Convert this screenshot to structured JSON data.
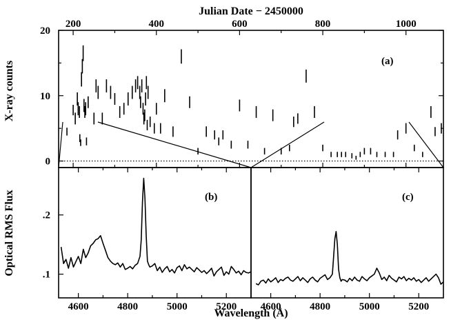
{
  "chart_data": [
    {
      "panel_label": "(a)",
      "type": "error-bar",
      "top_axis_label": "Julian Date − 2450000",
      "ylabel": "X-ray counts",
      "xlim": [
        165,
        1090
      ],
      "ylim": [
        -1,
        20
      ],
      "x_ticks": [
        200,
        400,
        600,
        800,
        1000
      ],
      "y_ticks": [
        0,
        10,
        20
      ],
      "zero_line": 0,
      "x": [
        185,
        200,
        205,
        210,
        212,
        215,
        216,
        218,
        220,
        222,
        224,
        226,
        228,
        230,
        232,
        236,
        250,
        255,
        260,
        270,
        280,
        290,
        300,
        312,
        322,
        332,
        342,
        350,
        355,
        360,
        362,
        365,
        368,
        370,
        372,
        374,
        376,
        378,
        380,
        385,
        395,
        400,
        410,
        420,
        440,
        460,
        480,
        500,
        520,
        540,
        550,
        560,
        580,
        600,
        620,
        640,
        660,
        680,
        700,
        720,
        730,
        740,
        760,
        780,
        800,
        820,
        835,
        845,
        855,
        870,
        880,
        890,
        900,
        915,
        930,
        950,
        970,
        980,
        1000,
        1020,
        1040,
        1060,
        1070,
        1085
      ],
      "values": [
        4.5,
        7.8,
        6.5,
        9.5,
        8.0,
        7.5,
        3.5,
        2.8,
        12.5,
        14.5,
        16.5,
        8.5,
        7.5,
        8.0,
        3.0,
        9.0,
        6.5,
        11.5,
        10.5,
        6.5,
        11.5,
        10.5,
        9.5,
        7.5,
        8.0,
        9.5,
        10.5,
        11.5,
        12.0,
        10.5,
        9.0,
        11.5,
        8.0,
        6.5,
        7.0,
        9.5,
        12.0,
        5.5,
        10.5,
        6.0,
        5.0,
        8.0,
        5.0,
        10.0,
        4.5,
        16.0,
        9.0,
        1.5,
        4.5,
        4.0,
        3.0,
        4.0,
        2.5,
        8.5,
        2.5,
        7.5,
        1.5,
        7.0,
        1.5,
        2.0,
        6.0,
        6.5,
        13.0,
        7.5,
        2.0,
        1.0,
        1.0,
        1.0,
        1.0,
        0.8,
        0.5,
        1.0,
        1.5,
        1.5,
        1.0,
        1.0,
        1.0,
        4.0,
        5.0,
        2.0,
        1.0,
        7.5,
        4.5,
        5.0
      ],
      "err": [
        0.6,
        0.8,
        0.9,
        1.0,
        1.0,
        0.9,
        0.6,
        0.5,
        1.1,
        1.1,
        1.2,
        1.0,
        0.9,
        1.0,
        0.6,
        0.9,
        0.9,
        1.0,
        1.0,
        0.9,
        1.0,
        1.0,
        0.9,
        0.9,
        0.9,
        1.0,
        1.0,
        1.0,
        1.0,
        1.0,
        0.9,
        1.0,
        0.9,
        0.9,
        0.9,
        1.0,
        1.0,
        0.8,
        1.0,
        0.8,
        0.8,
        0.9,
        0.8,
        1.0,
        0.8,
        1.1,
        0.9,
        0.5,
        0.8,
        0.7,
        0.6,
        0.7,
        0.6,
        0.9,
        0.6,
        0.9,
        0.5,
        0.9,
        0.5,
        0.5,
        0.8,
        0.8,
        1.0,
        0.9,
        0.5,
        0.4,
        0.4,
        0.4,
        0.4,
        0.4,
        0.3,
        0.4,
        0.5,
        0.5,
        0.4,
        0.4,
        0.4,
        0.7,
        0.8,
        0.5,
        0.4,
        0.9,
        0.7,
        0.8
      ]
    },
    {
      "panel_label": "(b)",
      "type": "line",
      "ylabel": "Optical RMS Flux",
      "xlim": [
        4520,
        5300
      ],
      "ylim": [
        0.06,
        0.28
      ],
      "x_ticks": [
        4600,
        4800,
        5000,
        5200
      ],
      "y_ticks": [
        0.1,
        0.2
      ],
      "y_tick_labels": [
        ".1",
        ".2"
      ],
      "x": [
        4530,
        4540,
        4550,
        4560,
        4570,
        4580,
        4590,
        4600,
        4610,
        4620,
        4630,
        4640,
        4650,
        4660,
        4670,
        4680,
        4690,
        4700,
        4710,
        4720,
        4730,
        4740,
        4750,
        4760,
        4770,
        4780,
        4790,
        4800,
        4810,
        4820,
        4830,
        4840,
        4850,
        4855,
        4860,
        4865,
        4870,
        4875,
        4880,
        4885,
        4890,
        4900,
        4910,
        4920,
        4930,
        4940,
        4950,
        4960,
        4970,
        4980,
        4990,
        5000,
        5010,
        5020,
        5030,
        5040,
        5050,
        5060,
        5070,
        5080,
        5090,
        5100,
        5110,
        5120,
        5130,
        5140,
        5150,
        5160,
        5170,
        5180,
        5190,
        5200,
        5210,
        5220,
        5230,
        5240,
        5250,
        5260,
        5270,
        5280,
        5290,
        5300
      ],
      "values": [
        0.146,
        0.118,
        0.125,
        0.11,
        0.128,
        0.112,
        0.121,
        0.13,
        0.118,
        0.142,
        0.128,
        0.136,
        0.148,
        0.152,
        0.158,
        0.16,
        0.165,
        0.152,
        0.14,
        0.128,
        0.122,
        0.118,
        0.116,
        0.119,
        0.112,
        0.118,
        0.108,
        0.11,
        0.113,
        0.109,
        0.115,
        0.118,
        0.13,
        0.158,
        0.222,
        0.262,
        0.228,
        0.165,
        0.122,
        0.116,
        0.112,
        0.114,
        0.118,
        0.106,
        0.112,
        0.103,
        0.109,
        0.113,
        0.104,
        0.108,
        0.102,
        0.111,
        0.114,
        0.106,
        0.116,
        0.109,
        0.112,
        0.108,
        0.104,
        0.111,
        0.107,
        0.103,
        0.106,
        0.101,
        0.105,
        0.11,
        0.097,
        0.104,
        0.108,
        0.112,
        0.098,
        0.104,
        0.1,
        0.113,
        0.108,
        0.102,
        0.105,
        0.099,
        0.106,
        0.103,
        0.102,
        0.104
      ]
    },
    {
      "panel_label": "(c)",
      "type": "line",
      "xlim": [
        4520,
        5300
      ],
      "ylim": [
        0.06,
        0.28
      ],
      "x_ticks": [
        4600,
        4800,
        5000,
        5200
      ],
      "x": [
        4540,
        4550,
        4560,
        4570,
        4580,
        4590,
        4600,
        4610,
        4620,
        4630,
        4640,
        4650,
        4660,
        4670,
        4680,
        4690,
        4700,
        4710,
        4720,
        4730,
        4740,
        4750,
        4760,
        4770,
        4780,
        4790,
        4800,
        4810,
        4820,
        4830,
        4840,
        4850,
        4855,
        4860,
        4865,
        4870,
        4875,
        4880,
        4885,
        4890,
        4900,
        4910,
        4920,
        4930,
        4940,
        4950,
        4960,
        4970,
        4980,
        4990,
        5000,
        5010,
        5020,
        5030,
        5040,
        5050,
        5060,
        5070,
        5080,
        5090,
        5100,
        5110,
        5120,
        5130,
        5140,
        5150,
        5160,
        5170,
        5180,
        5190,
        5200,
        5210,
        5220,
        5230,
        5240,
        5250,
        5260,
        5270,
        5280,
        5290,
        5300
      ],
      "values": [
        0.084,
        0.082,
        0.088,
        0.09,
        0.085,
        0.092,
        0.087,
        0.09,
        0.094,
        0.086,
        0.091,
        0.089,
        0.093,
        0.095,
        0.09,
        0.088,
        0.092,
        0.096,
        0.089,
        0.094,
        0.09,
        0.086,
        0.092,
        0.095,
        0.09,
        0.087,
        0.093,
        0.096,
        0.099,
        0.091,
        0.094,
        0.1,
        0.13,
        0.16,
        0.172,
        0.15,
        0.108,
        0.094,
        0.088,
        0.091,
        0.09,
        0.087,
        0.093,
        0.089,
        0.095,
        0.09,
        0.088,
        0.096,
        0.092,
        0.089,
        0.094,
        0.097,
        0.1,
        0.11,
        0.102,
        0.091,
        0.095,
        0.089,
        0.098,
        0.093,
        0.09,
        0.087,
        0.095,
        0.092,
        0.096,
        0.089,
        0.093,
        0.09,
        0.094,
        0.088,
        0.091,
        0.086,
        0.09,
        0.094,
        0.088,
        0.092,
        0.096,
        0.1,
        0.094,
        0.083,
        0.087
      ]
    }
  ],
  "xlabel_bottom": "Wavelength (Å)"
}
